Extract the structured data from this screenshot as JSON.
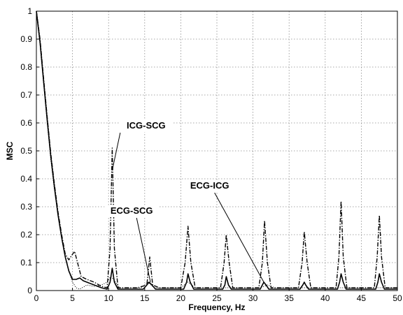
{
  "chart_data": {
    "type": "line",
    "title": "",
    "xlabel": "Frequency, Hz",
    "ylabel": "MSC",
    "xlim": [
      0,
      50
    ],
    "ylim": [
      0,
      1
    ],
    "xticks": [
      "0",
      "5",
      "10",
      "15",
      "20",
      "25",
      "30",
      "35",
      "40",
      "45",
      "50"
    ],
    "yticks": [
      "0",
      "0.1",
      "0.2",
      "0.3",
      "0.4",
      "0.5",
      "0.6",
      "0.7",
      "0.8",
      "0.9",
      "1"
    ],
    "grid": true,
    "legend": "none",
    "series": [
      {
        "name": "ICG-SCG",
        "style": "dashdot",
        "color": "#000000",
        "points": [
          [
            0,
            1.0
          ],
          [
            0.5,
            0.9
          ],
          [
            1,
            0.76
          ],
          [
            1.5,
            0.62
          ],
          [
            2,
            0.49
          ],
          [
            2.5,
            0.38
          ],
          [
            3,
            0.28
          ],
          [
            3.5,
            0.2
          ],
          [
            4,
            0.13
          ],
          [
            4.5,
            0.11
          ],
          [
            5,
            0.13
          ],
          [
            5.3,
            0.14
          ],
          [
            5.7,
            0.1
          ],
          [
            6.2,
            0.05
          ],
          [
            7,
            0.04
          ],
          [
            8,
            0.03
          ],
          [
            9,
            0.015
          ],
          [
            9.8,
            0.01
          ],
          [
            10.2,
            0.15
          ],
          [
            10.5,
            0.51
          ],
          [
            10.8,
            0.15
          ],
          [
            11.3,
            0.01
          ],
          [
            14,
            0.01
          ],
          [
            15.3,
            0.02
          ],
          [
            15.7,
            0.12
          ],
          [
            16.1,
            0.02
          ],
          [
            17,
            0.01
          ],
          [
            20,
            0.01
          ],
          [
            20.6,
            0.1
          ],
          [
            21,
            0.23
          ],
          [
            21.4,
            0.1
          ],
          [
            22,
            0.01
          ],
          [
            25.5,
            0.01
          ],
          [
            26,
            0.1
          ],
          [
            26.3,
            0.2
          ],
          [
            26.7,
            0.1
          ],
          [
            27.2,
            0.01
          ],
          [
            30.8,
            0.01
          ],
          [
            31.3,
            0.1
          ],
          [
            31.6,
            0.25
          ],
          [
            32,
            0.1
          ],
          [
            32.5,
            0.01
          ],
          [
            36.3,
            0.01
          ],
          [
            36.8,
            0.1
          ],
          [
            37.1,
            0.21
          ],
          [
            37.5,
            0.1
          ],
          [
            38,
            0.01
          ],
          [
            41.5,
            0.01
          ],
          [
            41.9,
            0.12
          ],
          [
            42.2,
            0.32
          ],
          [
            42.5,
            0.12
          ],
          [
            43,
            0.01
          ],
          [
            46.8,
            0.01
          ],
          [
            47.2,
            0.12
          ],
          [
            47.5,
            0.27
          ],
          [
            47.8,
            0.12
          ],
          [
            48.3,
            0.01
          ],
          [
            50,
            0.01
          ]
        ]
      },
      {
        "name": "ECG-SCG",
        "style": "dotted",
        "color": "#000000",
        "points": [
          [
            0,
            1.0
          ],
          [
            0.5,
            0.88
          ],
          [
            1,
            0.74
          ],
          [
            1.5,
            0.6
          ],
          [
            2,
            0.47
          ],
          [
            2.5,
            0.36
          ],
          [
            3,
            0.27
          ],
          [
            3.5,
            0.19
          ],
          [
            4,
            0.12
          ],
          [
            4.5,
            0.07
          ],
          [
            5,
            0.03
          ],
          [
            5.5,
            0.01
          ],
          [
            6,
            0.005
          ],
          [
            7,
            0.02
          ],
          [
            8,
            0.015
          ],
          [
            9,
            0.02
          ],
          [
            9.8,
            0.03
          ],
          [
            10.3,
            0.05
          ],
          [
            10.7,
            0.04
          ],
          [
            11.5,
            0.01
          ],
          [
            14.5,
            0.01
          ],
          [
            15.5,
            0.03
          ],
          [
            16.3,
            0.01
          ],
          [
            20,
            0.01
          ],
          [
            21,
            0.03
          ],
          [
            22,
            0.01
          ],
          [
            26,
            0.01
          ],
          [
            27,
            0.01
          ],
          [
            31,
            0.01
          ],
          [
            32,
            0.02
          ],
          [
            33,
            0.01
          ],
          [
            50,
            0.01
          ]
        ]
      },
      {
        "name": "ECG-ICG",
        "style": "solid",
        "color": "#000000",
        "points": [
          [
            0,
            1.0
          ],
          [
            0.5,
            0.89
          ],
          [
            1,
            0.75
          ],
          [
            1.5,
            0.61
          ],
          [
            2,
            0.48
          ],
          [
            2.5,
            0.37
          ],
          [
            3,
            0.27
          ],
          [
            3.5,
            0.19
          ],
          [
            4,
            0.12
          ],
          [
            4.5,
            0.07
          ],
          [
            5,
            0.04
          ],
          [
            5.5,
            0.04
          ],
          [
            6,
            0.045
          ],
          [
            6.5,
            0.035
          ],
          [
            7,
            0.03
          ],
          [
            8,
            0.02
          ],
          [
            9,
            0.01
          ],
          [
            9.8,
            0.005
          ],
          [
            10.2,
            0.03
          ],
          [
            10.5,
            0.08
          ],
          [
            10.8,
            0.03
          ],
          [
            11.3,
            0.005
          ],
          [
            14.8,
            0.005
          ],
          [
            15.3,
            0.02
          ],
          [
            15.6,
            0.03
          ],
          [
            16,
            0.02
          ],
          [
            16.5,
            0.005
          ],
          [
            20.4,
            0.005
          ],
          [
            20.8,
            0.03
          ],
          [
            21,
            0.06
          ],
          [
            21.3,
            0.03
          ],
          [
            21.8,
            0.005
          ],
          [
            25.8,
            0.005
          ],
          [
            26.1,
            0.02
          ],
          [
            26.3,
            0.05
          ],
          [
            26.6,
            0.02
          ],
          [
            27,
            0.005
          ],
          [
            31,
            0.005
          ],
          [
            31.3,
            0.02
          ],
          [
            31.5,
            0.03
          ],
          [
            31.8,
            0.02
          ],
          [
            32.2,
            0.005
          ],
          [
            36.5,
            0.005
          ],
          [
            36.9,
            0.02
          ],
          [
            37.1,
            0.03
          ],
          [
            37.3,
            0.02
          ],
          [
            37.7,
            0.005
          ],
          [
            41.7,
            0.005
          ],
          [
            42,
            0.03
          ],
          [
            42.2,
            0.06
          ],
          [
            42.5,
            0.03
          ],
          [
            42.9,
            0.005
          ],
          [
            47,
            0.005
          ],
          [
            47.3,
            0.03
          ],
          [
            47.5,
            0.06
          ],
          [
            47.8,
            0.03
          ],
          [
            48.2,
            0.005
          ],
          [
            50,
            0.005
          ]
        ]
      }
    ],
    "annotations": [
      {
        "text": "ICG-SCG",
        "x": 15.2,
        "y": 0.58,
        "arrow_to": [
          10.5,
          0.43
        ]
      },
      {
        "text": "ECG-SCG",
        "x": 13.2,
        "y": 0.275,
        "arrow_to": [
          15.8,
          0.03
        ]
      },
      {
        "text": "ECG-ICG",
        "x": 24.0,
        "y": 0.365,
        "arrow_to": [
          31.5,
          0.03
        ]
      }
    ]
  }
}
